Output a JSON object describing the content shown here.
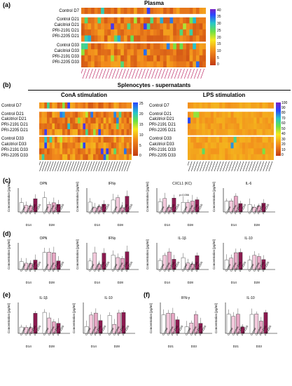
{
  "panels": {
    "a": {
      "label": "(a)",
      "title": "Plasma"
    },
    "b": {
      "label": "(b)",
      "title": "Splenocytes - supernatants",
      "left_title": "ConA stimulation",
      "right_title": "LPS stimulation"
    },
    "c": {
      "label": "(c)"
    },
    "d": {
      "label": "(d)"
    },
    "e": {
      "label": "(e)"
    },
    "f": {
      "label": "(f)"
    }
  },
  "heatmap_rows": {
    "top": [
      "Control D7"
    ],
    "d21": [
      "Control D21",
      "Calcitriol D21",
      "PRI-2191 D21",
      "PRI-2205 D21"
    ],
    "d33": [
      "Control D33",
      "Calcitriol D33",
      "PRI-2191 D33",
      "PRI-2205 D33"
    ]
  },
  "colorbars": {
    "a": [
      "40",
      "35",
      "30",
      "25",
      "20",
      "15",
      "10",
      "5",
      "0"
    ],
    "b_left": [
      "25",
      "20",
      "15",
      "10",
      "5",
      "0"
    ],
    "b_right": [
      "100",
      "90",
      "80",
      "70",
      "60",
      "50",
      "40",
      "30",
      "20",
      "10",
      "0"
    ]
  },
  "colors": {
    "heat_low": "#d93a1a",
    "heat_mid": "#f7d623",
    "heat_high": "#1a3cff",
    "lps_base": "#f3c21a",
    "bar_dark": "#8a1a4f",
    "bar_light": "#e6a7c4"
  },
  "row_c": {
    "ylabel": "Concentration [pg/ml]",
    "plots": [
      {
        "title": "OPN",
        "days": [
          "D14",
          "D28"
        ]
      },
      {
        "title": "IFNγ",
        "days": [
          "D14",
          "D28"
        ]
      },
      {
        "title": "CXCL1 (KC)",
        "days": [
          "D14",
          "D28"
        ],
        "note": "p=0.056"
      },
      {
        "title": "IL-6",
        "days": [
          "D14",
          "D28"
        ]
      }
    ]
  },
  "row_d": {
    "ylabel": "Concentration [pg/ml]",
    "plots": [
      {
        "title": "OPN",
        "days": [
          "D14",
          "D28"
        ]
      },
      {
        "title": "IFNγ",
        "days": [
          "D14",
          "D28"
        ]
      },
      {
        "title": "IL-1β",
        "days": [
          "D14",
          "D28"
        ]
      },
      {
        "title": "IL-10",
        "days": [
          "D14",
          "D28"
        ]
      }
    ]
  },
  "row_e": {
    "ylabel": "Concentration [pg/ml]",
    "plots": [
      {
        "title": "IL-1β",
        "days": [
          "D14",
          "D28"
        ]
      },
      {
        "title": "IL-10",
        "days": [
          "D14",
          "D28"
        ]
      }
    ]
  },
  "row_f": {
    "ylabel": "Concentration [pg/ml]",
    "plots": [
      {
        "title": "IFN-γ",
        "days": [
          "D21",
          "D33"
        ]
      },
      {
        "title": "IL-10",
        "days": [
          "D21",
          "D33"
        ]
      }
    ]
  },
  "groups": [
    "Control",
    "Calcitriol",
    "PRI-2191",
    "PRI-2205"
  ]
}
